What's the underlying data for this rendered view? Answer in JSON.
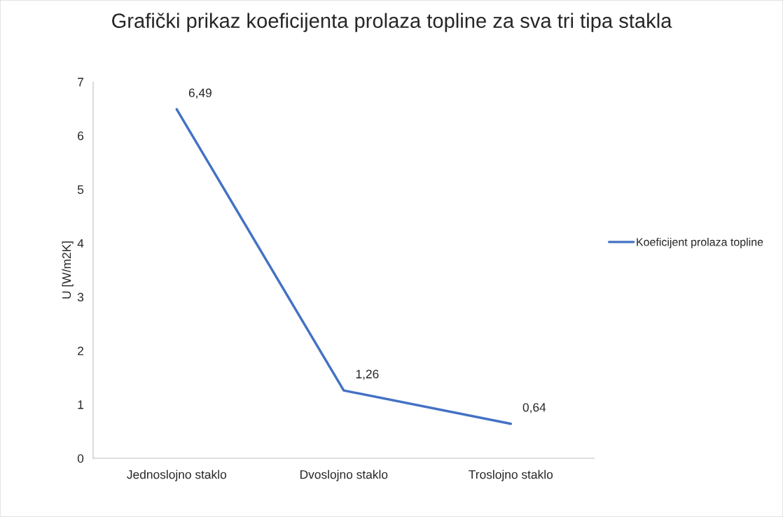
{
  "chart_data": {
    "type": "line",
    "title": "Grafički prikaz koeficijenta prolaza topline za sva tri tipa stakla",
    "ylabel": "U [W/m2K]",
    "categories": [
      "Jednoslojno staklo",
      "Dvoslojno staklo",
      "Troslojno staklo"
    ],
    "series": [
      {
        "name": "Koeficijent prolaza topline",
        "color": "#4472c4",
        "values": [
          6.49,
          1.26,
          0.64
        ],
        "value_labels": [
          "6,49",
          "1,26",
          "0,64"
        ]
      }
    ],
    "ylim": [
      0,
      7
    ],
    "yticks": [
      0,
      1,
      2,
      3,
      4,
      5,
      6,
      7
    ],
    "grid": false,
    "legend": "right",
    "marker": "none",
    "line_style": "solid"
  }
}
